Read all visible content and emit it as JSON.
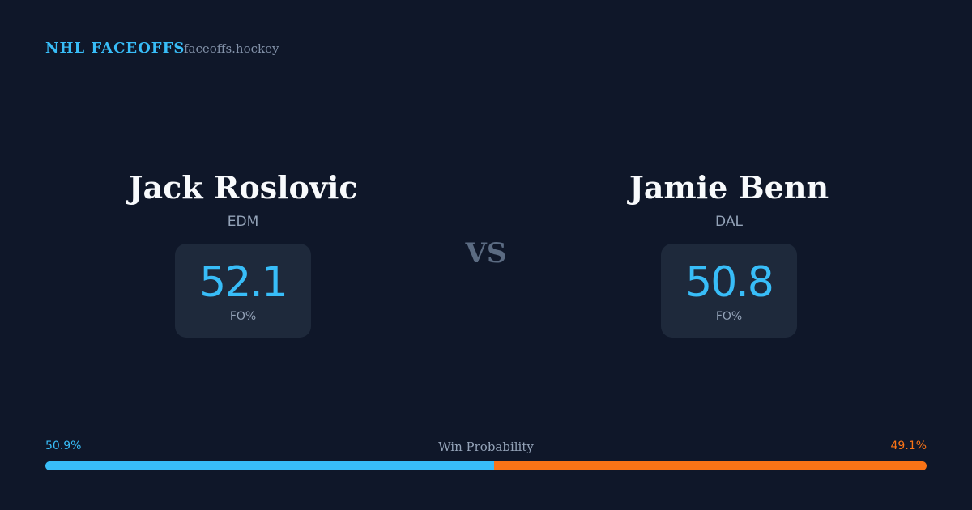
{
  "header": {
    "title": "NHL FACEOFFS",
    "site": "faceoffs.hockey"
  },
  "players": [
    {
      "name": "Jack Roslovic",
      "team": "EDM",
      "fo_pct": 52.1,
      "fo_label": "FO%"
    },
    {
      "name": "Jamie Benn",
      "team": "DAL",
      "fo_pct": 50.8,
      "fo_label": "FO%"
    }
  ],
  "vs": "VS",
  "win_probability": {
    "label": "Win Probability",
    "sides": [
      {
        "value": 50.9,
        "label": "50.9%",
        "color": "#38bdf8"
      },
      {
        "value": 49.1,
        "label": "49.1%",
        "color": "#f97316"
      }
    ]
  }
}
